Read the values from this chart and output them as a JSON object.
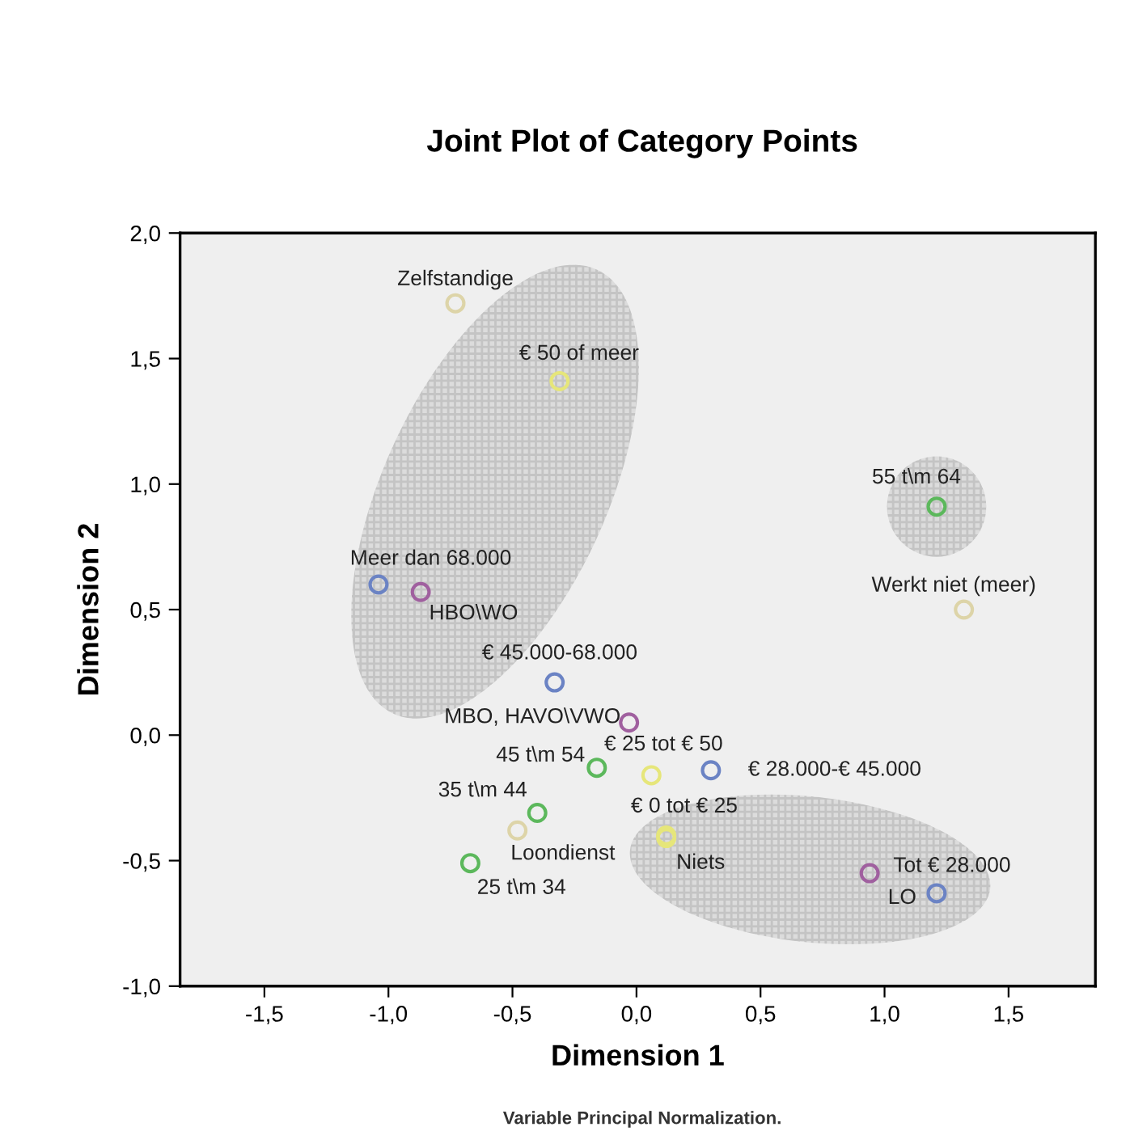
{
  "chart_data": {
    "type": "scatter",
    "title": "Joint Plot of Category Points",
    "xlabel": "Dimension 1",
    "ylabel": "Dimension 2",
    "xlim": [
      -1.84,
      1.85
    ],
    "ylim": [
      -1.0,
      2.0
    ],
    "xticks": [
      {
        "value": -1.5,
        "label": "-1,5"
      },
      {
        "value": -1.0,
        "label": "-1,0"
      },
      {
        "value": -0.5,
        "label": "-0,5"
      },
      {
        "value": 0.0,
        "label": "0,0"
      },
      {
        "value": 0.5,
        "label": "0,5"
      },
      {
        "value": 1.0,
        "label": "1,0"
      },
      {
        "value": 1.5,
        "label": "1,5"
      }
    ],
    "yticks": [
      {
        "value": -1.0,
        "label": "-1,0"
      },
      {
        "value": -0.5,
        "label": "-0,5"
      },
      {
        "value": 0.0,
        "label": "0,0"
      },
      {
        "value": 0.5,
        "label": "0,5"
      },
      {
        "value": 1.0,
        "label": "1,0"
      },
      {
        "value": 1.5,
        "label": "1,5"
      },
      {
        "value": 2.0,
        "label": "2,0"
      }
    ],
    "grid": false,
    "legend": false,
    "marker": "circle",
    "series": [
      {
        "color": "#6b83c4",
        "x": [
          -1.04,
          -0.33,
          0.3,
          1.21
        ],
        "values": [
          0.6,
          0.21,
          -0.14,
          -0.63
        ]
      },
      {
        "color": "#a0609f",
        "x": [
          -0.87,
          -0.03,
          0.94
        ],
        "values": [
          0.57,
          0.05,
          -0.55
        ]
      },
      {
        "color": "#5cb85c",
        "x": [
          -0.16,
          -0.4,
          -0.67,
          1.21
        ],
        "values": [
          -0.13,
          -0.31,
          -0.51,
          0.91
        ]
      },
      {
        "color": "#e6e67a",
        "x": [
          -0.31,
          0.06,
          0.12,
          0.12
        ],
        "values": [
          1.41,
          -0.16,
          -0.4,
          -0.41
        ]
      },
      {
        "color": "#ddd4a8",
        "x": [
          -0.73,
          -0.48,
          1.32
        ],
        "values": [
          1.72,
          -0.38,
          0.5
        ]
      }
    ],
    "annotations": [
      {
        "text": "Zelfstandige",
        "x": -0.73,
        "y": 1.72
      },
      {
        "text": "€ 50 of meer",
        "x": -0.31,
        "y": 1.41
      },
      {
        "text": "Meer dan 68.000",
        "x": -1.04,
        "y": 0.6
      },
      {
        "text": "HBO\\WO",
        "x": -0.87,
        "y": 0.57
      },
      {
        "text": "€ 45.000-68.000",
        "x": -0.33,
        "y": 0.21
      },
      {
        "text": "MBO, HAVO\\VWO",
        "x": -0.03,
        "y": 0.05
      },
      {
        "text": "45 t\\m 54",
        "x": -0.16,
        "y": -0.13
      },
      {
        "text": "€ 25 tot € 50",
        "x": 0.06,
        "y": -0.16
      },
      {
        "text": "€ 28.000-€ 45.000",
        "x": 0.3,
        "y": -0.14
      },
      {
        "text": "35 t\\m 44",
        "x": -0.4,
        "y": -0.31
      },
      {
        "text": "Loondienst",
        "x": -0.48,
        "y": -0.38
      },
      {
        "text": "€ 0 tot € 25",
        "x": 0.12,
        "y": -0.4
      },
      {
        "text": "Niets",
        "x": 0.12,
        "y": -0.41
      },
      {
        "text": "25 t\\m 34",
        "x": -0.67,
        "y": -0.51
      },
      {
        "text": "Tot € 28.000",
        "x": 0.94,
        "y": -0.55
      },
      {
        "text": "LO",
        "x": 1.21,
        "y": -0.63
      },
      {
        "text": "55 t\\m 64",
        "x": 1.21,
        "y": 0.91
      },
      {
        "text": "Werkt niet (meer)",
        "x": 1.32,
        "y": 0.5
      },
      "Variable Principal Normalization."
    ]
  }
}
